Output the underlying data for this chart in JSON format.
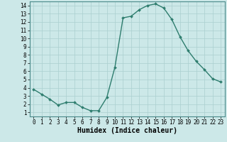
{
  "x": [
    0,
    1,
    2,
    3,
    4,
    5,
    6,
    7,
    8,
    9,
    10,
    11,
    12,
    13,
    14,
    15,
    16,
    17,
    18,
    19,
    20,
    21,
    22,
    23
  ],
  "y": [
    3.8,
    3.2,
    2.6,
    1.9,
    2.2,
    2.2,
    1.6,
    1.2,
    1.2,
    2.8,
    6.5,
    12.5,
    12.7,
    13.5,
    14.0,
    14.2,
    13.7,
    12.3,
    10.2,
    8.5,
    7.2,
    6.2,
    5.1,
    4.7
  ],
  "line_color": "#2e7d6e",
  "marker": "D",
  "marker_size": 2.0,
  "bg_color": "#cce8e8",
  "grid_color": "#aacfcf",
  "xlabel": "Humidex (Indice chaleur)",
  "xlim": [
    -0.5,
    23.5
  ],
  "ylim": [
    0.5,
    14.5
  ],
  "xticks": [
    0,
    1,
    2,
    3,
    4,
    5,
    6,
    7,
    8,
    9,
    10,
    11,
    12,
    13,
    14,
    15,
    16,
    17,
    18,
    19,
    20,
    21,
    22,
    23
  ],
  "yticks": [
    1,
    2,
    3,
    4,
    5,
    6,
    7,
    8,
    9,
    10,
    11,
    12,
    13,
    14
  ],
  "xlabel_fontsize": 7,
  "tick_fontsize": 5.5
}
